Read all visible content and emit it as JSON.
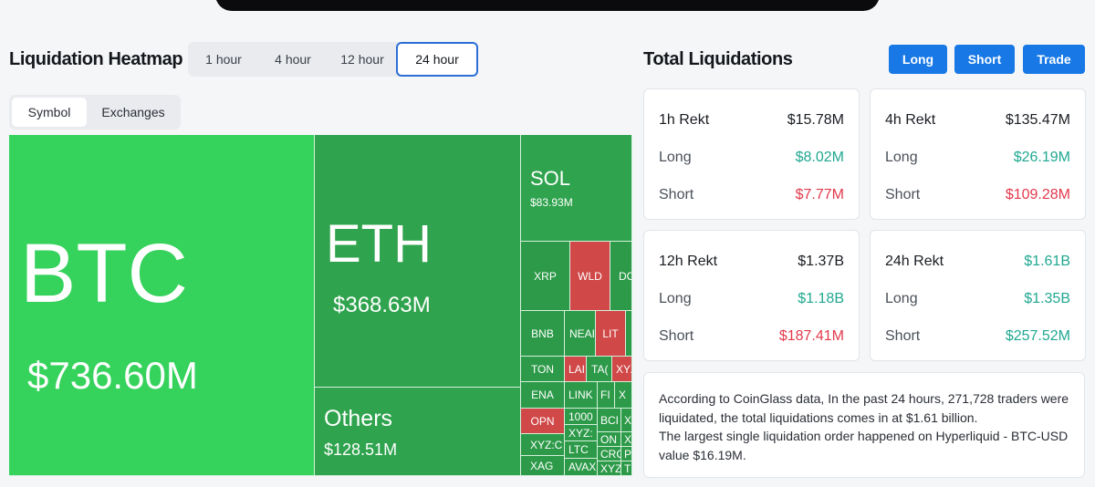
{
  "banner": {
    "art_colors": [
      "#7a8f3c",
      "#e5c237",
      "#4e5d6b",
      "#a8b43c"
    ]
  },
  "heatmap": {
    "title": "Liquidation Heatmap",
    "time_tabs": [
      "1 hour",
      "4 hour",
      "12 hour",
      "24 hour"
    ],
    "active_time_tab": "24 hour",
    "view_tabs": [
      "Symbol",
      "Exchanges"
    ],
    "active_view_tab": "Symbol",
    "colors": {
      "bright_green": "#35d25c",
      "green": "#2fa34d",
      "red": "#d04848"
    },
    "cells": [
      {
        "symbol": "BTC",
        "value": "$736.60M"
      },
      {
        "symbol": "ETH",
        "value": "$368.63M"
      },
      {
        "symbol": "Others",
        "value": "$128.51M"
      },
      {
        "symbol": "SOL",
        "value": "$83.93M"
      },
      {
        "symbol": "XRP"
      },
      {
        "symbol": "WLD"
      },
      {
        "symbol": "DO"
      },
      {
        "symbol": "BNB"
      },
      {
        "symbol": "NEAI"
      },
      {
        "symbol": "LIT"
      },
      {
        "symbol": "TON"
      },
      {
        "symbol": "LAI"
      },
      {
        "symbol": "TA("
      },
      {
        "symbol": "XYZ"
      },
      {
        "symbol": "ENA"
      },
      {
        "symbol": "LINK"
      },
      {
        "symbol": "FI"
      },
      {
        "symbol": "X"
      },
      {
        "symbol": "OPN"
      },
      {
        "symbol": "1000"
      },
      {
        "symbol": "BCI"
      },
      {
        "symbol": "X"
      },
      {
        "symbol": "XYZ:"
      },
      {
        "symbol": "ON"
      },
      {
        "symbol": "X"
      },
      {
        "symbol": "XYZ:C"
      },
      {
        "symbol": "LTC"
      },
      {
        "symbol": "CRC"
      },
      {
        "symbol": "P"
      },
      {
        "symbol": "XAG"
      },
      {
        "symbol": "AVAX"
      },
      {
        "symbol": "XYZ"
      },
      {
        "symbol": "T"
      }
    ]
  },
  "liquidations": {
    "title": "Total Liquidations",
    "buttons": [
      "Long",
      "Short",
      "Trade"
    ],
    "accent": "#1878e6",
    "cards": [
      {
        "label": "1h Rekt",
        "total": "$15.78M",
        "total_tone": "neutral",
        "long_label": "Long",
        "long": "$8.02M",
        "short_label": "Short",
        "short": "$7.77M",
        "short_tone": "red"
      },
      {
        "label": "4h Rekt",
        "total": "$135.47M",
        "total_tone": "neutral",
        "long_label": "Long",
        "long": "$26.19M",
        "short_label": "Short",
        "short": "$109.28M",
        "short_tone": "red"
      },
      {
        "label": "12h Rekt",
        "total": "$1.37B",
        "total_tone": "neutral",
        "long_label": "Long",
        "long": "$1.18B",
        "short_label": "Short",
        "short": "$187.41M",
        "short_tone": "red"
      },
      {
        "label": "24h Rekt",
        "total": "$1.61B",
        "total_tone": "green",
        "long_label": "Long",
        "long": "$1.35B",
        "short_label": "Short",
        "short": "$257.52M",
        "short_tone": "green"
      }
    ],
    "summary_line1": "According to CoinGlass data, In the past 24 hours, 271,728 traders were liquidated, the total liquidations comes in at $1.61 billion.",
    "summary_line2": "The largest single liquidation order happened on Hyperliquid - BTC-USD value $16.19M."
  }
}
